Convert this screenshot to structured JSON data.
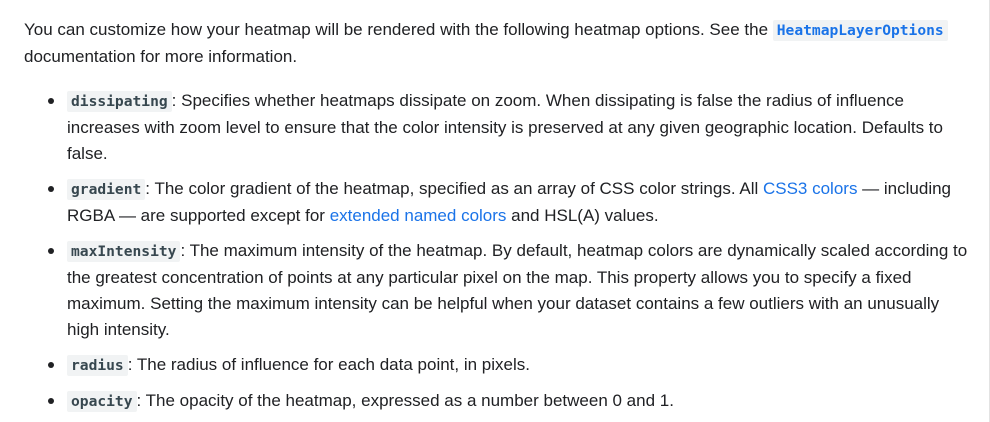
{
  "intro": {
    "before": "You can customize how your heatmap will be rendered with the following heatmap options. See the ",
    "link_code": "HeatmapLayerOptions",
    "after": " documentation for more information."
  },
  "options": [
    {
      "name": "dissipating",
      "sep": ": ",
      "text": "Specifies whether heatmaps dissipate on zoom. When dissipating is false the radius of influence increases with zoom level to ensure that the color intensity is preserved at any given geographic location. Defaults to false."
    },
    {
      "name": "gradient",
      "sep": ": ",
      "text1": "The color gradient of the heatmap, specified as an array of CSS color strings. All ",
      "link1": "CSS3 colors",
      "text2": " — including RGBA — are supported except for ",
      "link2": "extended named colors",
      "text3": " and HSL(A) values."
    },
    {
      "name": "maxIntensity",
      "sep": ": ",
      "text": "The maximum intensity of the heatmap. By default, heatmap colors are dynamically scaled according to the greatest concentration of points at any particular pixel on the map. This property allows you to specify a fixed maximum. Setting the maximum intensity can be helpful when your dataset contains a few outliers with an unusually high intensity."
    },
    {
      "name": "radius",
      "sep": ": ",
      "text": "The radius of influence for each data point, in pixels."
    },
    {
      "name": "opacity",
      "sep": ": ",
      "text": "The opacity of the heatmap, expressed as a number between 0 and 1."
    }
  ],
  "colors": {
    "text": "#202124",
    "link": "#1a73e8",
    "code_bg": "#f1f3f4",
    "code_text": "#37474f"
  }
}
